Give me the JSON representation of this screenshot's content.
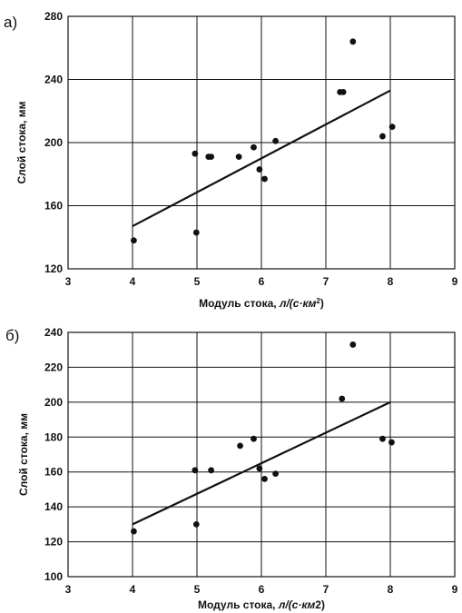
{
  "chart_data": [
    {
      "type": "scatter",
      "panel_label": "а)",
      "title": "",
      "xlabel": "Модуль стока, л/(с·км²)",
      "xlabel_main": "Модуль стока, ",
      "xlabel_unit": "л/(с·км",
      "xlabel_sup": "2",
      "xlabel_close": ")",
      "ylabel": "Слой стока, мм",
      "xlim": [
        3,
        9
      ],
      "ylim": [
        120,
        280
      ],
      "xticks": [
        3,
        4,
        5,
        6,
        7,
        8,
        9
      ],
      "yticks": [
        120,
        160,
        200,
        240,
        280
      ],
      "grid": true,
      "points": [
        {
          "x": 4.02,
          "y": 138
        },
        {
          "x": 4.97,
          "y": 193
        },
        {
          "x": 4.99,
          "y": 143
        },
        {
          "x": 5.18,
          "y": 191
        },
        {
          "x": 5.22,
          "y": 191
        },
        {
          "x": 5.65,
          "y": 191
        },
        {
          "x": 5.88,
          "y": 197
        },
        {
          "x": 5.97,
          "y": 183
        },
        {
          "x": 6.05,
          "y": 177
        },
        {
          "x": 6.22,
          "y": 201
        },
        {
          "x": 7.22,
          "y": 232
        },
        {
          "x": 7.27,
          "y": 232
        },
        {
          "x": 7.42,
          "y": 264
        },
        {
          "x": 7.88,
          "y": 204
        },
        {
          "x": 8.03,
          "y": 210
        }
      ],
      "trendline": [
        {
          "x": 4.0,
          "y": 147
        },
        {
          "x": 8.0,
          "y": 233
        }
      ]
    },
    {
      "type": "scatter",
      "panel_label": "б)",
      "title": "",
      "xlabel": "Модуль стока, л/(с·км2)",
      "xlabel_main": "Модуль стока, ",
      "xlabel_unit": "л/(с·км",
      "xlabel_sup": "2",
      "xlabel_close": ")",
      "ylabel": "Слой стока, мм",
      "xlim": [
        3,
        9
      ],
      "ylim": [
        100,
        240
      ],
      "xticks": [
        3,
        4,
        5,
        6,
        7,
        8,
        9
      ],
      "yticks": [
        100,
        120,
        140,
        160,
        180,
        200,
        220,
        240
      ],
      "grid": true,
      "points": [
        {
          "x": 4.02,
          "y": 126
        },
        {
          "x": 4.97,
          "y": 161
        },
        {
          "x": 4.99,
          "y": 130
        },
        {
          "x": 5.22,
          "y": 161
        },
        {
          "x": 5.67,
          "y": 175
        },
        {
          "x": 5.88,
          "y": 179
        },
        {
          "x": 5.97,
          "y": 162
        },
        {
          "x": 6.05,
          "y": 156
        },
        {
          "x": 6.22,
          "y": 159
        },
        {
          "x": 7.25,
          "y": 202
        },
        {
          "x": 7.42,
          "y": 233
        },
        {
          "x": 7.88,
          "y": 179
        },
        {
          "x": 8.02,
          "y": 177
        }
      ],
      "trendline": [
        {
          "x": 4.0,
          "y": 130
        },
        {
          "x": 8.0,
          "y": 200
        }
      ]
    }
  ]
}
